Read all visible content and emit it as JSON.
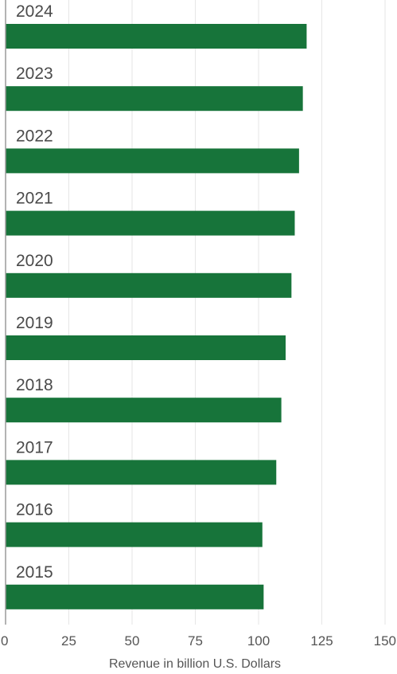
{
  "chart_data": {
    "type": "bar",
    "orientation": "horizontal",
    "categories": [
      "2024",
      "2023",
      "2022",
      "2021",
      "2020",
      "2019",
      "2018",
      "2017",
      "2016",
      "2015"
    ],
    "values": [
      119,
      117.5,
      116,
      114.3,
      113,
      110.7,
      109,
      107,
      101.5,
      102
    ],
    "xlabel": "Revenue in billion U.S. Dollars",
    "ylabel": "",
    "xlim": [
      0,
      150
    ],
    "xticks": [
      "0",
      "25",
      "50",
      "75",
      "100",
      "125",
      "150"
    ],
    "grid": true,
    "legend": "none",
    "bar_color": "#17743a",
    "grid_color": "#e6e6e6",
    "axis_color": "#9a9a9a"
  }
}
